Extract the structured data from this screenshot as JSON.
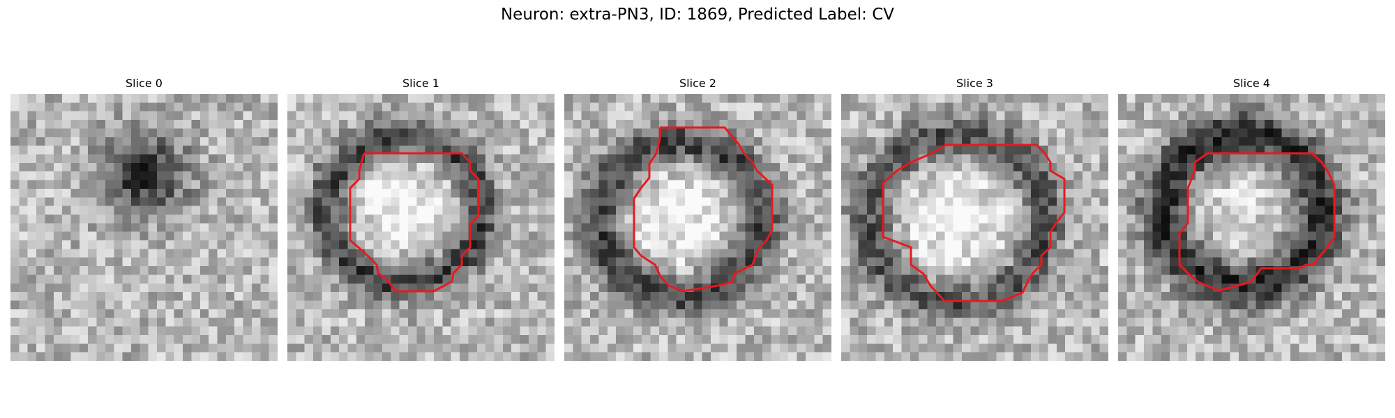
{
  "figure": {
    "title": "Neuron: extra-PN3, ID: 1869, Predicted Label: CV"
  },
  "colors": {
    "contour": "#e8191f",
    "background": "#ffffff"
  },
  "slices": [
    {
      "label": "Slice 0",
      "has_contour": false
    },
    {
      "label": "Slice 1",
      "has_contour": true
    },
    {
      "label": "Slice 2",
      "has_contour": true
    },
    {
      "label": "Slice 3",
      "has_contour": true
    },
    {
      "label": "Slice 4",
      "has_contour": true
    }
  ]
}
